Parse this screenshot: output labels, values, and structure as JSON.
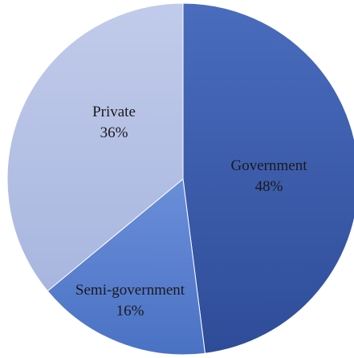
{
  "chart_data": {
    "type": "pie",
    "slices": [
      {
        "label": "Government",
        "value": 48,
        "value_label": "48%",
        "color": "#3c5ba9"
      },
      {
        "label": "Semi-government",
        "value": 16,
        "value_label": "16%",
        "color": "#5b80d0"
      },
      {
        "label": "Private",
        "value": 36,
        "value_label": "36%",
        "color": "#b4c0e4"
      }
    ],
    "start_angle_deg": 0,
    "direction": "clockwise",
    "legend": "none",
    "label_placement": "inside"
  }
}
